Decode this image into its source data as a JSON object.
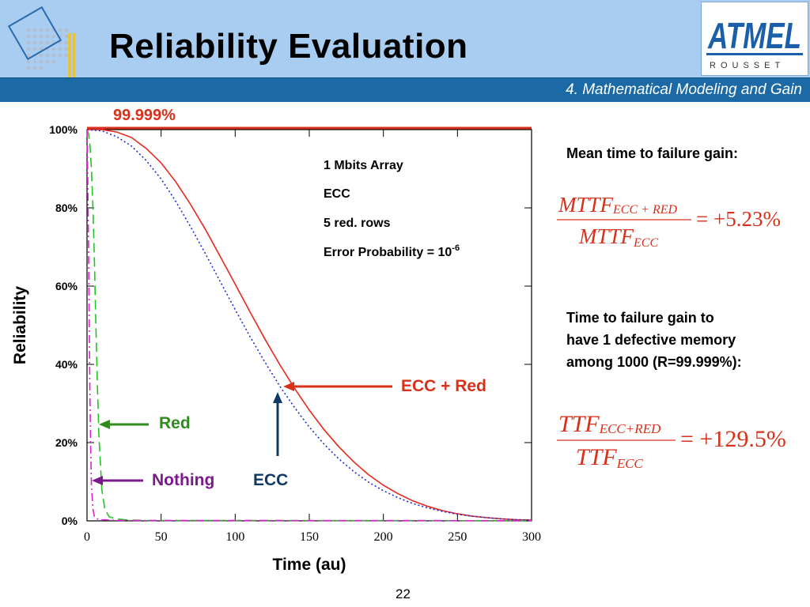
{
  "slide": {
    "title": "Reliability Evaluation",
    "subtitle": "4. Mathematical Modeling and Gain",
    "logo_text": "ATMEL",
    "logo_subtext": "ROUSSET",
    "page_number": "22"
  },
  "colors": {
    "header_bg": "#a9cdf0",
    "subbar_bg": "#1b6aa5",
    "accent_red": "#d9301a",
    "green": "#2e8b1e",
    "purple": "#7a1a8a",
    "navy": "#0f3a66",
    "blue_dotted": "#1e2ed6",
    "magenta": "#e020d0",
    "logo_blue": "#1b5fa8"
  },
  "chart_data": {
    "type": "line",
    "xlabel": "Time (au)",
    "ylabel": "Reliability",
    "xlim": [
      0,
      300
    ],
    "ylim": [
      0,
      100
    ],
    "x_ticks": [
      0,
      50,
      100,
      150,
      200,
      250,
      300
    ],
    "y_ticks": [
      0,
      20,
      40,
      60,
      80,
      100
    ],
    "y_tick_labels": [
      "0%",
      "20%",
      "40%",
      "60%",
      "80%",
      "100%"
    ],
    "reference_line": {
      "value": 99.999,
      "label": "99.999%"
    },
    "series": [
      {
        "name": "ECC + Red",
        "style": "solid",
        "color": "#e8281c",
        "x": [
          0,
          10,
          20,
          30,
          40,
          50,
          60,
          70,
          80,
          90,
          100,
          110,
          120,
          130,
          140,
          150,
          160,
          170,
          180,
          190,
          200,
          210,
          220,
          230,
          240,
          250,
          260,
          270,
          280,
          290,
          300
        ],
        "y": [
          100,
          100,
          99.4,
          98,
          95.2,
          91.5,
          86.6,
          80.8,
          74.4,
          67.5,
          60.5,
          53.4,
          46.5,
          40,
          33.9,
          28.3,
          23.3,
          18.9,
          15.1,
          11.8,
          9.1,
          6.9,
          5.1,
          3.7,
          2.6,
          1.8,
          1.2,
          0.8,
          0.5,
          0.3,
          0.2
        ]
      },
      {
        "name": "ECC",
        "style": "dotted",
        "color": "#1e2ed6",
        "x": [
          0,
          10,
          20,
          30,
          40,
          50,
          60,
          70,
          80,
          90,
          100,
          110,
          120,
          130,
          140,
          150,
          160,
          170,
          180,
          190,
          200,
          210,
          220,
          230,
          240,
          250,
          260,
          270,
          280,
          290,
          300
        ],
        "y": [
          100,
          99.7,
          98.2,
          95.8,
          92.1,
          87.4,
          81.6,
          75.1,
          68.2,
          61.1,
          54,
          47.1,
          40.6,
          34.5,
          29,
          24,
          19.6,
          15.8,
          12.6,
          9.9,
          7.7,
          5.9,
          4.4,
          3.3,
          2.4,
          1.7,
          1.2,
          0.8,
          0.5,
          0.3,
          0.2
        ]
      },
      {
        "name": "Red",
        "style": "dashed",
        "color": "#22c422",
        "x": [
          0,
          1,
          2,
          3,
          4,
          5,
          6,
          7,
          8,
          10,
          12,
          15,
          20,
          25,
          30,
          40,
          300
        ],
        "y": [
          100,
          99,
          96,
          90,
          80,
          66,
          50,
          35,
          22,
          8,
          3,
          1,
          0.5,
          0.3,
          0.2,
          0.1,
          0.05
        ]
      },
      {
        "name": "Nothing",
        "style": "dash-dot",
        "color": "#e020d0",
        "x": [
          0,
          0.5,
          1,
          1.5,
          2,
          2.5,
          3,
          4,
          5,
          7,
          10,
          15,
          25,
          300
        ],
        "y": [
          100,
          88,
          70,
          50,
          32,
          18,
          9,
          3,
          1,
          0.5,
          0.3,
          0.2,
          0.1,
          0.05
        ]
      }
    ],
    "annotations": [
      {
        "text": "ECC + Red",
        "color": "#d9301a"
      },
      {
        "text": "ECC",
        "color": "#0f3a66"
      },
      {
        "text": "Red",
        "color": "#2e8b1e"
      },
      {
        "text": "Nothing",
        "color": "#7a1a8a"
      }
    ],
    "info_box": {
      "line1": "1 Mbits Array",
      "line2": "ECC",
      "line3": "5 red. rows",
      "line4_base": "Error Probability = 10",
      "line4_exp": "-6"
    }
  },
  "right_panel": {
    "mttf_heading": "Mean time to failure gain:",
    "mttf_formula": {
      "num_main": "MTTF",
      "num_sub": "ECC + RED",
      "den_main": "MTTF",
      "den_sub": "ECC",
      "result": "= +5.23%"
    },
    "ttf_heading_line1": "Time to failure gain to",
    "ttf_heading_line2": "have 1 defective memory",
    "ttf_heading_line3": "among 1000 (R=99.999%):",
    "ttf_formula": {
      "num_main": "TTF",
      "num_sub": "ECC+RED",
      "den_main": "TTF",
      "den_sub": "ECC",
      "result": "= +129.5%"
    }
  }
}
